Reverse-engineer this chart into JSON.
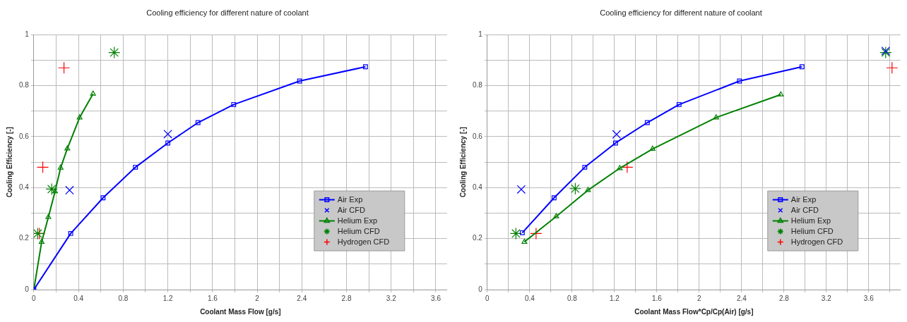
{
  "chart_data": [
    {
      "type": "line",
      "title": "Cooling efficiency for different nature of coolant",
      "xlabel": "Coolant Mass Flow [g/s]",
      "ylabel": "Cooling Efficiency [-]",
      "xlim": [
        0,
        3.7
      ],
      "ylim": [
        0,
        1
      ],
      "xticks": [
        0,
        {
          "value": 0.2,
          "label": null
        },
        0.4,
        {
          "value": 0.6,
          "label": null
        },
        0.8,
        {
          "value": 1,
          "label": null
        },
        1.2,
        {
          "value": 1.4,
          "label": null
        },
        1.6,
        {
          "value": 1.8,
          "label": null
        },
        2,
        {
          "value": 2.2,
          "label": null
        },
        2.4,
        {
          "value": 2.6,
          "label": null
        },
        2.8,
        {
          "value": 3,
          "label": null
        },
        3.2,
        {
          "value": 3.4,
          "label": null
        },
        3.6
      ],
      "yticks": [
        0,
        {
          "value": 0.1,
          "label": null
        },
        0.2,
        {
          "value": 0.3,
          "label": null
        },
        0.4,
        {
          "value": 0.5,
          "label": null
        },
        0.6,
        {
          "value": 0.7,
          "label": null
        },
        0.8,
        {
          "value": 0.9,
          "label": null
        },
        1
      ],
      "grid": true,
      "legend": "bottom right",
      "series": [
        {
          "name": "Air Exp",
          "type": "line",
          "color": "#0000ff",
          "marker": "square",
          "line_style": "solid",
          "x": [
            0,
            0.33,
            0.62,
            0.91,
            1.2,
            1.47,
            1.79,
            2.38,
            2.97
          ],
          "values": [
            0,
            0.22,
            0.36,
            0.48,
            0.575,
            0.655,
            0.726,
            0.818,
            0.874
          ]
        },
        {
          "name": "Air CFD",
          "type": "scatter",
          "color": "#0000ff",
          "marker": "x",
          "x": [
            0.32,
            1.2
          ],
          "values": [
            0.39,
            0.61
          ]
        },
        {
          "name": "Helium Exp",
          "type": "line",
          "color": "#008000",
          "marker": "triangle",
          "line_style": "solid",
          "x": [
            0,
            0.07,
            0.13,
            0.19,
            0.24,
            0.3,
            0.41,
            0.53
          ],
          "values": [
            0,
            0.187,
            0.284,
            0.385,
            0.478,
            0.553,
            0.675,
            0.768
          ]
        },
        {
          "name": "Helium CFD",
          "type": "scatter",
          "color": "#008000",
          "marker": "cross",
          "x": [
            0.035,
            0.16,
            0.72
          ],
          "values": [
            0.22,
            0.394,
            0.93
          ]
        },
        {
          "name": "Hydrogen CFD",
          "type": "scatter",
          "color": "#ff0000",
          "marker": "plus",
          "x": [
            0.05,
            0.08,
            0.27
          ],
          "values": [
            0.22,
            0.48,
            0.87
          ]
        }
      ]
    },
    {
      "type": "line",
      "title": "Cooling efficiency for different nature of coolant",
      "xlabel": "Coolant Mass Flow*Cp/Cp(Air) [g/s]",
      "ylabel": "Cooling Efficiency [-]",
      "xlim": [
        0,
        3.9
      ],
      "ylim": [
        0,
        1
      ],
      "xticks": [
        0,
        {
          "value": 0.2,
          "label": null
        },
        0.4,
        {
          "value": 0.6,
          "label": null
        },
        0.8,
        {
          "value": 1,
          "label": null
        },
        1.2,
        {
          "value": 1.4,
          "label": null
        },
        1.6,
        {
          "value": 1.8,
          "label": null
        },
        2,
        {
          "value": 2.2,
          "label": null
        },
        2.4,
        {
          "value": 2.6,
          "label": null
        },
        2.8,
        {
          "value": 3,
          "label": null
        },
        3.2,
        {
          "value": 3.4,
          "label": null
        },
        3.6,
        {
          "value": 3.8,
          "label": null
        }
      ],
      "yticks": [
        0,
        {
          "value": 0.1,
          "label": null
        },
        0.2,
        {
          "value": 0.3,
          "label": null
        },
        0.4,
        {
          "value": 0.5,
          "label": null
        },
        0.6,
        {
          "value": 0.7,
          "label": null
        },
        0.8,
        {
          "value": 0.9,
          "label": null
        },
        1
      ],
      "grid": true,
      "legend": "bottom right",
      "series": [
        {
          "name": "Air Exp",
          "type": "line",
          "color": "#0000ff",
          "marker": "square",
          "line_style": "solid",
          "x": [
            0.33,
            0.63,
            0.92,
            1.21,
            1.51,
            1.81,
            2.38,
            2.97
          ],
          "values": [
            0.223,
            0.36,
            0.48,
            0.575,
            0.655,
            0.726,
            0.818,
            0.874
          ]
        },
        {
          "name": "Air CFD",
          "type": "scatter",
          "color": "#0000ff",
          "marker": "x",
          "x": [
            0.32,
            1.22,
            3.76
          ],
          "values": [
            0.393,
            0.609,
            0.936
          ]
        },
        {
          "name": "Helium Exp",
          "type": "line",
          "color": "#008000",
          "marker": "triangle",
          "line_style": "solid",
          "x": [
            0.35,
            0.65,
            0.95,
            1.25,
            1.56,
            2.16,
            2.77
          ],
          "values": [
            0.187,
            0.287,
            0.39,
            0.476,
            0.552,
            0.675,
            0.765
          ]
        },
        {
          "name": "Helium CFD",
          "type": "scatter",
          "color": "#008000",
          "marker": "cross",
          "x": [
            0.27,
            0.83,
            3.76
          ],
          "values": [
            0.22,
            0.396,
            0.93
          ]
        },
        {
          "name": "Hydrogen CFD",
          "type": "scatter",
          "color": "#ff0000",
          "marker": "plus",
          "x": [
            0.46,
            1.32,
            3.82
          ],
          "values": [
            0.22,
            0.48,
            0.87
          ]
        }
      ]
    }
  ]
}
